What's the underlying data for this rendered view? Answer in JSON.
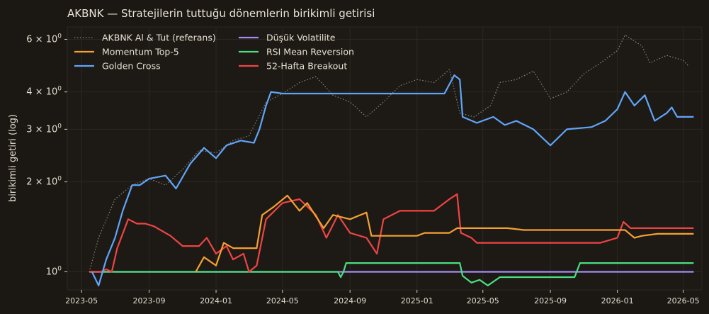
{
  "chart_data": {
    "type": "line",
    "title": "AKBNK — Stratejilerin tuttuğu dönemlerin birikimli getirisi",
    "xlabel": "",
    "ylabel": "birikimli getiri (log)",
    "y_scale": "log",
    "ylim": [
      0.87,
      6.6
    ],
    "xlim": [
      "2023-04-05",
      "2026-06-04"
    ],
    "x_ticks": [
      "2023-05",
      "2023-09",
      "2024-01",
      "2024-05",
      "2024-09",
      "2025-01",
      "2025-05",
      "2025-09",
      "2026-01",
      "2026-05"
    ],
    "y_ticks": [
      {
        "value": 1,
        "base": "10",
        "exp": "0"
      },
      {
        "value": 2,
        "base": "2 × 10",
        "exp": "0"
      },
      {
        "value": 3,
        "base": "3 × 10",
        "exp": "0"
      },
      {
        "value": 4,
        "base": "4 × 10",
        "exp": "0"
      },
      {
        "value": 6,
        "base": "6 × 10",
        "exp": "0"
      }
    ],
    "grid": true,
    "legend": {
      "placement": "top-left",
      "columns": 2
    },
    "series": [
      {
        "name": "AKBNK Al & Tut (referans)",
        "color": "#8a8579",
        "style": "dotted",
        "points": [
          [
            "2023-05-15",
            1.0
          ],
          [
            "2023-06-01",
            1.3
          ],
          [
            "2023-07-01",
            1.75
          ],
          [
            "2023-08-01",
            1.95
          ],
          [
            "2023-09-01",
            2.05
          ],
          [
            "2023-10-01",
            1.95
          ],
          [
            "2023-11-01",
            2.2
          ],
          [
            "2023-12-01",
            2.55
          ],
          [
            "2024-01-01",
            2.5
          ],
          [
            "2024-02-01",
            2.75
          ],
          [
            "2024-03-01",
            2.85
          ],
          [
            "2024-04-01",
            3.7
          ],
          [
            "2024-05-01",
            3.95
          ],
          [
            "2024-06-01",
            4.3
          ],
          [
            "2024-07-01",
            4.5
          ],
          [
            "2024-08-01",
            3.9
          ],
          [
            "2024-09-01",
            3.7
          ],
          [
            "2024-10-01",
            3.3
          ],
          [
            "2024-11-01",
            3.7
          ],
          [
            "2024-12-01",
            4.2
          ],
          [
            "2025-01-01",
            4.4
          ],
          [
            "2025-02-01",
            4.3
          ],
          [
            "2025-03-01",
            4.75
          ],
          [
            "2025-03-20",
            3.4
          ],
          [
            "2025-04-15",
            3.3
          ],
          [
            "2025-05-15",
            3.6
          ],
          [
            "2025-06-01",
            4.3
          ],
          [
            "2025-07-01",
            4.4
          ],
          [
            "2025-08-01",
            4.7
          ],
          [
            "2025-09-01",
            3.8
          ],
          [
            "2025-10-01",
            4.0
          ],
          [
            "2025-11-01",
            4.6
          ],
          [
            "2025-12-01",
            5.0
          ],
          [
            "2026-01-01",
            5.5
          ],
          [
            "2026-01-15",
            6.2
          ],
          [
            "2026-02-15",
            5.7
          ],
          [
            "2026-03-01",
            5.0
          ],
          [
            "2026-04-01",
            5.3
          ],
          [
            "2026-05-01",
            5.1
          ],
          [
            "2026-05-10",
            4.9
          ]
        ]
      },
      {
        "name": "Momentum Top-5",
        "color": "#f5a033",
        "style": "solid",
        "points": [
          [
            "2023-11-25",
            1.0
          ],
          [
            "2023-12-10",
            1.12
          ],
          [
            "2024-01-01",
            1.05
          ],
          [
            "2024-01-15",
            1.25
          ],
          [
            "2024-02-01",
            1.2
          ],
          [
            "2024-03-01",
            1.2
          ],
          [
            "2024-03-15",
            1.2
          ],
          [
            "2024-03-25",
            1.55
          ],
          [
            "2024-04-15",
            1.65
          ],
          [
            "2024-05-10",
            1.8
          ],
          [
            "2024-06-01",
            1.6
          ],
          [
            "2024-06-15",
            1.7
          ],
          [
            "2024-07-15",
            1.4
          ],
          [
            "2024-08-01",
            1.55
          ],
          [
            "2024-09-01",
            1.5
          ],
          [
            "2024-10-01",
            1.58
          ],
          [
            "2024-10-10",
            1.32
          ],
          [
            "2024-12-01",
            1.32
          ],
          [
            "2025-01-01",
            1.32
          ],
          [
            "2025-01-15",
            1.35
          ],
          [
            "2025-02-01",
            1.35
          ],
          [
            "2025-03-01",
            1.35
          ],
          [
            "2025-03-15",
            1.4
          ],
          [
            "2025-05-01",
            1.4
          ],
          [
            "2025-06-15",
            1.4
          ],
          [
            "2025-07-15",
            1.38
          ],
          [
            "2025-09-01",
            1.38
          ],
          [
            "2025-12-01",
            1.38
          ],
          [
            "2026-01-15",
            1.38
          ],
          [
            "2026-02-01",
            1.3
          ],
          [
            "2026-02-15",
            1.32
          ],
          [
            "2026-03-15",
            1.34
          ],
          [
            "2026-05-20",
            1.34
          ]
        ]
      },
      {
        "name": "Golden Cross",
        "color": "#60a5fa",
        "style": "solid",
        "points": [
          [
            "2023-05-20",
            1.0
          ],
          [
            "2023-06-01",
            0.9
          ],
          [
            "2023-06-15",
            1.1
          ],
          [
            "2023-07-01",
            1.3
          ],
          [
            "2023-07-15",
            1.6
          ],
          [
            "2023-08-01",
            1.95
          ],
          [
            "2023-08-15",
            1.95
          ],
          [
            "2023-09-01",
            2.05
          ],
          [
            "2023-10-01",
            2.1
          ],
          [
            "2023-10-20",
            1.9
          ],
          [
            "2023-11-15",
            2.3
          ],
          [
            "2023-12-10",
            2.6
          ],
          [
            "2024-01-01",
            2.4
          ],
          [
            "2024-01-20",
            2.65
          ],
          [
            "2024-02-15",
            2.75
          ],
          [
            "2024-03-10",
            2.7
          ],
          [
            "2024-03-20",
            3.0
          ],
          [
            "2024-04-01",
            3.6
          ],
          [
            "2024-04-10",
            4.0
          ],
          [
            "2024-05-01",
            3.95
          ],
          [
            "2024-08-01",
            3.95
          ],
          [
            "2025-01-01",
            3.95
          ],
          [
            "2025-02-20",
            3.95
          ],
          [
            "2025-03-10",
            4.55
          ],
          [
            "2025-03-20",
            4.4
          ],
          [
            "2025-03-25",
            3.3
          ],
          [
            "2025-04-20",
            3.15
          ],
          [
            "2025-05-20",
            3.3
          ],
          [
            "2025-06-10",
            3.1
          ],
          [
            "2025-07-01",
            3.2
          ],
          [
            "2025-08-01",
            3.0
          ],
          [
            "2025-09-01",
            2.65
          ],
          [
            "2025-10-01",
            3.0
          ],
          [
            "2025-11-15",
            3.05
          ],
          [
            "2025-12-10",
            3.2
          ],
          [
            "2026-01-01",
            3.5
          ],
          [
            "2026-01-15",
            4.0
          ],
          [
            "2026-02-01",
            3.6
          ],
          [
            "2026-02-20",
            3.9
          ],
          [
            "2026-03-10",
            3.2
          ],
          [
            "2026-04-01",
            3.4
          ],
          [
            "2026-04-10",
            3.55
          ],
          [
            "2026-04-20",
            3.3
          ],
          [
            "2026-05-20",
            3.3
          ]
        ]
      },
      {
        "name": "Düşük Volatilite",
        "color": "#a78bfa",
        "style": "solid",
        "points": [
          [
            "2023-05-15",
            1.0
          ],
          [
            "2026-05-20",
            1.0
          ]
        ]
      },
      {
        "name": "RSI Mean Reversion",
        "color": "#4ade80",
        "style": "solid",
        "points": [
          [
            "2023-05-15",
            1.0
          ],
          [
            "2024-08-10",
            1.0
          ],
          [
            "2024-08-15",
            0.96
          ],
          [
            "2024-08-20",
            1.0
          ],
          [
            "2024-08-25",
            1.07
          ],
          [
            "2025-03-20",
            1.07
          ],
          [
            "2025-03-25",
            0.97
          ],
          [
            "2025-04-10",
            0.92
          ],
          [
            "2025-04-25",
            0.94
          ],
          [
            "2025-05-10",
            0.9
          ],
          [
            "2025-06-01",
            0.96
          ],
          [
            "2025-10-15",
            0.96
          ],
          [
            "2025-10-25",
            1.07
          ],
          [
            "2026-05-20",
            1.07
          ]
        ]
      },
      {
        "name": "52-Hafta Breakout",
        "color": "#ef4444",
        "style": "solid",
        "points": [
          [
            "2023-05-15",
            1.0
          ],
          [
            "2023-06-05",
            1.0
          ],
          [
            "2023-06-15",
            1.02
          ],
          [
            "2023-06-25",
            1.0
          ],
          [
            "2023-07-05",
            1.2
          ],
          [
            "2023-07-25",
            1.5
          ],
          [
            "2023-08-10",
            1.45
          ],
          [
            "2023-08-25",
            1.45
          ],
          [
            "2023-09-10",
            1.42
          ],
          [
            "2023-10-10",
            1.32
          ],
          [
            "2023-11-01",
            1.22
          ],
          [
            "2023-12-01",
            1.22
          ],
          [
            "2023-12-15",
            1.3
          ],
          [
            "2024-01-01",
            1.15
          ],
          [
            "2024-01-20",
            1.22
          ],
          [
            "2024-02-01",
            1.1
          ],
          [
            "2024-02-20",
            1.15
          ],
          [
            "2024-03-01",
            1.0
          ],
          [
            "2024-03-15",
            1.05
          ],
          [
            "2024-04-01",
            1.5
          ],
          [
            "2024-05-01",
            1.7
          ],
          [
            "2024-06-01",
            1.75
          ],
          [
            "2024-07-01",
            1.55
          ],
          [
            "2024-07-20",
            1.3
          ],
          [
            "2024-08-10",
            1.55
          ],
          [
            "2024-09-01",
            1.35
          ],
          [
            "2024-10-01",
            1.3
          ],
          [
            "2024-10-20",
            1.15
          ],
          [
            "2024-11-01",
            1.5
          ],
          [
            "2024-12-01",
            1.6
          ],
          [
            "2025-01-01",
            1.6
          ],
          [
            "2025-02-01",
            1.6
          ],
          [
            "2025-03-01",
            1.75
          ],
          [
            "2025-03-15",
            1.82
          ],
          [
            "2025-03-22",
            1.35
          ],
          [
            "2025-04-10",
            1.3
          ],
          [
            "2025-04-20",
            1.25
          ],
          [
            "2025-09-01",
            1.25
          ],
          [
            "2025-12-01",
            1.25
          ],
          [
            "2026-01-01",
            1.3
          ],
          [
            "2026-01-12",
            1.47
          ],
          [
            "2026-01-25",
            1.4
          ],
          [
            "2026-02-15",
            1.4
          ],
          [
            "2026-05-20",
            1.4
          ]
        ]
      }
    ]
  }
}
